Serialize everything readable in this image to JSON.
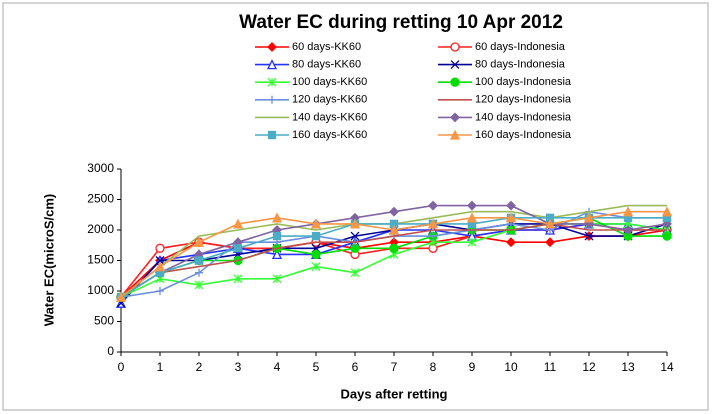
{
  "chart_data": {
    "type": "line",
    "title": "Water EC during retting 10 Apr 2012",
    "x_label": "Days after retting",
    "y_label": "Water EC(microS/cm)",
    "x": [
      0,
      1,
      2,
      3,
      4,
      5,
      6,
      7,
      8,
      9,
      10,
      11,
      12,
      13,
      14
    ],
    "xlim": [
      0,
      14
    ],
    "xticks": [
      0,
      1,
      2,
      3,
      4,
      5,
      6,
      7,
      8,
      9,
      10,
      11,
      12,
      13,
      14
    ],
    "ylim": [
      0,
      3000
    ],
    "yticks": [
      0,
      500,
      1000,
      1500,
      2000,
      2500,
      3000
    ],
    "series": [
      {
        "name": "60 days-KK60",
        "color": "#ff0000",
        "marker": "diamond",
        "values": [
          900,
          1500,
          1800,
          1700,
          1700,
          1800,
          1700,
          1800,
          1800,
          1900,
          1800,
          1800,
          1900,
          1900,
          2000
        ]
      },
      {
        "name": "60 days-Indonesia",
        "color": "#ff2020",
        "marker": "circle-open",
        "values": [
          900,
          1700,
          1800,
          1700,
          1700,
          1800,
          1600,
          1700,
          1700,
          1900,
          2000,
          2000,
          2100,
          2000,
          2000
        ]
      },
      {
        "name": "80 days-KK60",
        "color": "#2233ff",
        "marker": "triangle-open",
        "values": [
          800,
          1500,
          1600,
          1700,
          1600,
          1600,
          1800,
          2000,
          2000,
          1900,
          2000,
          2000,
          2100,
          2100,
          2000
        ]
      },
      {
        "name": "80 days-Indonesia",
        "color": "#000099",
        "marker": "x",
        "values": [
          800,
          1500,
          1500,
          1600,
          1700,
          1700,
          1900,
          2000,
          2100,
          2000,
          2100,
          2100,
          1900,
          1900,
          2100
        ]
      },
      {
        "name": "100 days-KK60",
        "color": "#33ff33",
        "marker": "star",
        "values": [
          900,
          1200,
          1100,
          1200,
          1200,
          1400,
          1300,
          1600,
          1800,
          1800,
          2000,
          2100,
          2100,
          2100,
          2000
        ]
      },
      {
        "name": "100 days-Indonesia",
        "color": "#00dd00",
        "marker": "circle",
        "values": [
          900,
          1300,
          1500,
          1500,
          1700,
          1600,
          1700,
          1700,
          1900,
          2000,
          2000,
          2100,
          2200,
          1900,
          1900
        ]
      },
      {
        "name": "120 days-KK60",
        "color": "#6b8fe0",
        "marker": "plus",
        "values": [
          900,
          1000,
          1300,
          1800,
          1800,
          1900,
          1800,
          1900,
          1900,
          2000,
          2100,
          2000,
          2300,
          2200,
          2200
        ]
      },
      {
        "name": "120 days-Indonesia",
        "color": "#c0504d",
        "marker": "none",
        "values": [
          900,
          1300,
          1400,
          1500,
          1700,
          1800,
          1800,
          1900,
          2000,
          2000,
          2000,
          2100,
          2000,
          2000,
          2000
        ]
      },
      {
        "name": "140 days-KK60",
        "color": "#9bbb59",
        "marker": "none",
        "values": [
          900,
          1400,
          1900,
          2000,
          2100,
          2000,
          2100,
          2100,
          2200,
          2300,
          2300,
          2200,
          2300,
          2400,
          2400
        ]
      },
      {
        "name": "140 days-Indonesia",
        "color": "#8064a2",
        "marker": "diamond",
        "values": [
          900,
          1300,
          1600,
          1800,
          2000,
          2100,
          2200,
          2300,
          2400,
          2400,
          2400,
          2100,
          2100,
          2000,
          2100
        ]
      },
      {
        "name": "160 days-KK60",
        "color": "#4bacc6",
        "marker": "square",
        "values": [
          900,
          1300,
          1500,
          1700,
          1900,
          1900,
          2100,
          2100,
          2100,
          2100,
          2200,
          2200,
          2200,
          2200,
          2200
        ]
      },
      {
        "name": "160 days-Indonesia",
        "color": "#f79646",
        "marker": "triangle",
        "values": [
          900,
          1400,
          1800,
          2100,
          2200,
          2100,
          2100,
          2000,
          2100,
          2200,
          2200,
          2100,
          2200,
          2300,
          2300
        ]
      }
    ]
  }
}
